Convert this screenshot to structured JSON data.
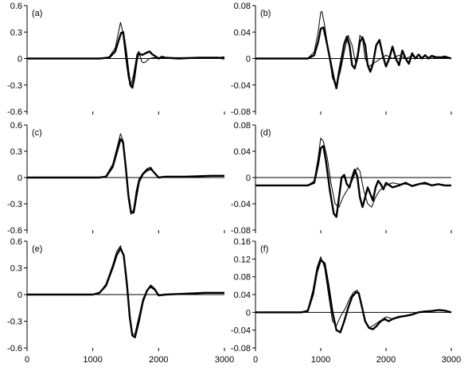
{
  "chart_data": [
    {
      "id": "a",
      "label": "(a)",
      "type": "line",
      "ylim": [
        -0.6,
        0.6
      ],
      "yticks": [
        -0.6,
        -0.3,
        0,
        0.3,
        0.6
      ],
      "yticklabels": [
        "-0.6",
        "-0.3",
        "0",
        "0.3",
        "0.6"
      ],
      "xlim": [
        0,
        3000
      ],
      "xticks": [
        0,
        1000,
        2000,
        3000
      ],
      "xticklabels": [],
      "series": [
        {
          "style": "thin",
          "x": [
            0,
            1100,
            1250,
            1340,
            1390,
            1420,
            1450,
            1500,
            1540,
            1580,
            1620,
            1670,
            1700,
            1740,
            1770,
            1800,
            1860,
            1920,
            2000,
            2100,
            2300,
            2600,
            2900,
            3000
          ],
          "y": [
            0,
            0,
            0.02,
            0.12,
            0.3,
            0.41,
            0.32,
            0.0,
            -0.22,
            -0.3,
            -0.18,
            0.05,
            0.08,
            -0.03,
            -0.05,
            -0.04,
            0.0,
            0.01,
            0.0,
            0.01,
            0.01,
            0.01,
            0.01,
            0.02
          ]
        },
        {
          "style": "thick",
          "x": [
            0,
            1100,
            1250,
            1340,
            1390,
            1430,
            1460,
            1500,
            1540,
            1570,
            1600,
            1630,
            1670,
            1700,
            1750,
            1800,
            1860,
            1900,
            1960,
            2000,
            2050,
            2100,
            2300,
            2600,
            2900,
            3000
          ],
          "y": [
            0,
            0,
            0.01,
            0.08,
            0.2,
            0.29,
            0.3,
            0.1,
            -0.15,
            -0.3,
            -0.33,
            -0.22,
            0.0,
            0.06,
            0.04,
            0.06,
            0.08,
            0.05,
            0.02,
            0.0,
            0.02,
            0.01,
            0.0,
            0.01,
            0.01,
            0.0
          ]
        }
      ]
    },
    {
      "id": "b",
      "label": "(b)",
      "type": "line",
      "ylim": [
        -0.08,
        0.08
      ],
      "yticks": [
        -0.08,
        -0.04,
        0,
        0.04,
        0.08
      ],
      "yticklabels": [
        "-0.08",
        "-0.04",
        "0",
        "0.04",
        "0.08"
      ],
      "xlim": [
        0,
        3000
      ],
      "xticks": [
        0,
        1000,
        2000,
        3000
      ],
      "xticklabels": [],
      "series": [
        {
          "style": "thin",
          "x": [
            0,
            800,
            900,
            960,
            1000,
            1020,
            1060,
            1120,
            1180,
            1240,
            1300,
            1360,
            1420,
            1480,
            1530,
            1560,
            1600,
            1640,
            1680,
            1740,
            1800,
            1860,
            1920,
            2000,
            2100,
            2200,
            2300,
            2400,
            2500,
            2600,
            2700,
            2800,
            2900,
            3000
          ],
          "y": [
            0,
            0,
            0.01,
            0.04,
            0.07,
            0.071,
            0.05,
            0.01,
            -0.03,
            -0.04,
            -0.02,
            0.01,
            0.035,
            0.02,
            -0.005,
            0.005,
            0.035,
            0.03,
            0.0,
            -0.012,
            -0.008,
            -0.004,
            0.0,
            0.005,
            0.0,
            0.005,
            0.0,
            0.004,
            0.0,
            0.004,
            0.0,
            0.003,
            0.001,
            0.0
          ]
        },
        {
          "style": "thick",
          "x": [
            0,
            800,
            900,
            960,
            1000,
            1040,
            1080,
            1140,
            1200,
            1240,
            1280,
            1320,
            1360,
            1400,
            1440,
            1480,
            1520,
            1560,
            1600,
            1640,
            1680,
            1720,
            1760,
            1800,
            1850,
            1900,
            1950,
            2000,
            2050,
            2100,
            2150,
            2200,
            2250,
            2300,
            2350,
            2400,
            2450,
            2500,
            2550,
            2600,
            2650,
            2700,
            2800,
            2900,
            3000
          ],
          "y": [
            0,
            0,
            0.005,
            0.025,
            0.045,
            0.047,
            0.03,
            0.0,
            -0.03,
            -0.045,
            -0.02,
            0.0,
            0.022,
            0.033,
            0.02,
            -0.01,
            -0.015,
            0.0,
            0.025,
            0.032,
            0.02,
            -0.01,
            -0.02,
            -0.008,
            0.02,
            0.028,
            0.005,
            -0.012,
            0.0,
            0.018,
            0.0,
            -0.01,
            0.012,
            0.0,
            -0.008,
            0.008,
            0.0,
            0.006,
            0.0,
            0.005,
            0.0,
            0.004,
            0.001,
            0.003,
            0.0
          ]
        }
      ]
    },
    {
      "id": "c",
      "label": "(c)",
      "type": "line",
      "ylim": [
        -0.6,
        0.6
      ],
      "yticks": [
        -0.6,
        -0.3,
        0,
        0.3,
        0.6
      ],
      "yticklabels": [
        "-0.6",
        "-0.3",
        "0",
        "0.3",
        "0.6"
      ],
      "xlim": [
        0,
        3000
      ],
      "xticks": [
        0,
        1000,
        2000,
        3000
      ],
      "xticklabels": [],
      "series": [
        {
          "style": "thin",
          "x": [
            0,
            1100,
            1200,
            1300,
            1380,
            1420,
            1460,
            1500,
            1540,
            1580,
            1620,
            1660,
            1700,
            1760,
            1820,
            1880,
            1940,
            2000,
            2100,
            2400,
            2800,
            3000
          ],
          "y": [
            0,
            0,
            0.02,
            0.15,
            0.38,
            0.5,
            0.42,
            0.1,
            -0.25,
            -0.42,
            -0.36,
            -0.15,
            -0.02,
            0.05,
            0.1,
            0.12,
            0.05,
            0.0,
            0.01,
            0.01,
            0.02,
            0.02
          ]
        },
        {
          "style": "thick",
          "x": [
            0,
            1100,
            1200,
            1300,
            1380,
            1420,
            1460,
            1500,
            1540,
            1580,
            1620,
            1660,
            1700,
            1760,
            1820,
            1880,
            1940,
            2000,
            2100,
            2400,
            2800,
            3000
          ],
          "y": [
            0,
            0,
            0.01,
            0.12,
            0.33,
            0.44,
            0.4,
            0.12,
            -0.2,
            -0.4,
            -0.4,
            -0.22,
            -0.05,
            0.04,
            0.08,
            0.1,
            0.05,
            0.0,
            0.01,
            0.01,
            0.02,
            0.02
          ]
        }
      ]
    },
    {
      "id": "d",
      "label": "(d)",
      "type": "line",
      "ylim": [
        -0.08,
        0.08
      ],
      "yticks": [
        -0.08,
        -0.04,
        0,
        0.04,
        0.08
      ],
      "yticklabels": [
        "-0.08",
        "-0.04",
        "0",
        "0.04",
        "0.08"
      ],
      "xlim": [
        0,
        3000
      ],
      "xticks": [
        0,
        1000,
        2000,
        3000
      ],
      "xticklabels": [],
      "series": [
        {
          "style": "thin",
          "x": [
            0,
            800,
            900,
            960,
            1000,
            1040,
            1100,
            1160,
            1220,
            1280,
            1340,
            1400,
            1460,
            1520,
            1560,
            1600,
            1660,
            1720,
            1780,
            1840,
            1900,
            1960,
            2000,
            2100,
            2200,
            2300,
            2400,
            2500,
            2600,
            2700,
            2800,
            2900,
            3000
          ],
          "y": [
            -0.012,
            -0.012,
            -0.005,
            0.03,
            0.06,
            0.055,
            0.03,
            -0.01,
            -0.04,
            -0.045,
            -0.03,
            -0.02,
            -0.01,
            0.005,
            0.015,
            0.01,
            -0.02,
            -0.04,
            -0.045,
            -0.03,
            -0.02,
            -0.015,
            -0.012,
            -0.008,
            -0.01,
            -0.01,
            -0.012,
            -0.01,
            -0.01,
            -0.012,
            -0.01,
            -0.012,
            -0.012
          ]
        },
        {
          "style": "thick",
          "x": [
            0,
            800,
            900,
            960,
            1000,
            1040,
            1080,
            1140,
            1200,
            1240,
            1280,
            1320,
            1360,
            1400,
            1440,
            1480,
            1520,
            1560,
            1600,
            1640,
            1680,
            1720,
            1760,
            1800,
            1840,
            1880,
            1920,
            1960,
            2000,
            2100,
            2200,
            2300,
            2400,
            2500,
            2600,
            2700,
            2800,
            2900,
            3000
          ],
          "y": [
            -0.012,
            -0.012,
            -0.008,
            0.02,
            0.045,
            0.048,
            0.025,
            -0.02,
            -0.055,
            -0.06,
            -0.03,
            0.0,
            0.004,
            -0.01,
            -0.015,
            0.0,
            0.012,
            0.002,
            -0.03,
            -0.045,
            -0.03,
            -0.015,
            -0.025,
            -0.035,
            -0.015,
            -0.005,
            -0.01,
            -0.018,
            -0.008,
            -0.015,
            -0.012,
            -0.008,
            -0.013,
            -0.01,
            -0.008,
            -0.012,
            -0.01,
            -0.012,
            -0.012
          ]
        }
      ]
    },
    {
      "id": "e",
      "label": "(e)",
      "type": "line",
      "ylim": [
        -0.6,
        0.6
      ],
      "yticks": [
        -0.6,
        -0.3,
        0,
        0.3,
        0.6
      ],
      "yticklabels": [
        "-0.6",
        "-0.3",
        "0",
        "0.3",
        "0.6"
      ],
      "xlim": [
        0,
        3000
      ],
      "xticks": [
        0,
        1000,
        2000,
        3000
      ],
      "xticklabels": [
        "0",
        "1000",
        "2000",
        "3000"
      ],
      "series": [
        {
          "style": "thin",
          "x": [
            0,
            1000,
            1100,
            1200,
            1300,
            1360,
            1420,
            1470,
            1520,
            1560,
            1600,
            1640,
            1700,
            1760,
            1820,
            1880,
            1940,
            2000,
            2100,
            2400,
            2700,
            3000
          ],
          "y": [
            0,
            0,
            0.02,
            0.12,
            0.33,
            0.48,
            0.55,
            0.42,
            0.05,
            -0.28,
            -0.45,
            -0.44,
            -0.25,
            -0.05,
            0.05,
            0.08,
            0.05,
            -0.01,
            0.0,
            0.01,
            0.02,
            0.02
          ]
        },
        {
          "style": "thick",
          "x": [
            0,
            1000,
            1100,
            1200,
            1300,
            1360,
            1420,
            1470,
            1520,
            1560,
            1600,
            1640,
            1700,
            1760,
            1820,
            1880,
            1940,
            2000,
            2100,
            2400,
            2700,
            3000
          ],
          "y": [
            0,
            0,
            0.02,
            0.1,
            0.3,
            0.44,
            0.52,
            0.44,
            0.1,
            -0.25,
            -0.46,
            -0.48,
            -0.3,
            -0.08,
            0.04,
            0.1,
            0.06,
            -0.01,
            0.0,
            0.01,
            0.02,
            0.02
          ]
        }
      ]
    },
    {
      "id": "f",
      "label": "(f)",
      "type": "line",
      "ylim": [
        -0.08,
        0.16
      ],
      "yticks": [
        -0.08,
        -0.04,
        0,
        0.04,
        0.08,
        0.12,
        0.16
      ],
      "yticklabels": [
        "-0.08",
        "-0.04",
        "0",
        "0.04",
        "0.08",
        "0.12",
        "0.16"
      ],
      "xlim": [
        0,
        3000
      ],
      "xticks": [
        0,
        1000,
        2000,
        3000
      ],
      "xticklabels": [
        "0",
        "1000",
        "2000",
        "3000"
      ],
      "series": [
        {
          "style": "thin",
          "x": [
            0,
            700,
            800,
            880,
            940,
            1000,
            1060,
            1120,
            1180,
            1240,
            1300,
            1380,
            1440,
            1500,
            1560,
            1620,
            1680,
            1740,
            1800,
            1900,
            2000,
            2100,
            2200,
            2300,
            2400,
            2500,
            2600,
            2700,
            2800,
            2900,
            3000
          ],
          "y": [
            0,
            0,
            0.005,
            0.05,
            0.1,
            0.125,
            0.1,
            0.04,
            -0.02,
            -0.03,
            -0.01,
            0.01,
            0.03,
            0.045,
            0.05,
            0.02,
            -0.02,
            -0.035,
            -0.03,
            -0.02,
            -0.01,
            -0.015,
            -0.012,
            -0.008,
            -0.005,
            0.0,
            0.002,
            0.004,
            0.005,
            0.004,
            0.0
          ]
        },
        {
          "style": "thick",
          "x": [
            0,
            700,
            800,
            880,
            940,
            1000,
            1060,
            1120,
            1180,
            1240,
            1300,
            1360,
            1420,
            1480,
            1540,
            1580,
            1620,
            1680,
            1740,
            1800,
            1860,
            1920,
            1980,
            2040,
            2100,
            2200,
            2300,
            2400,
            2500,
            2600,
            2700,
            2800,
            2900,
            3000
          ],
          "y": [
            0,
            0,
            0.003,
            0.04,
            0.09,
            0.118,
            0.11,
            0.06,
            0.0,
            -0.04,
            -0.045,
            -0.02,
            0.01,
            0.035,
            0.045,
            0.044,
            0.02,
            -0.02,
            -0.035,
            -0.038,
            -0.03,
            -0.02,
            -0.015,
            -0.02,
            -0.015,
            -0.01,
            -0.008,
            -0.005,
            0.0,
            0.002,
            0.003,
            0.005,
            0.004,
            0.0
          ]
        }
      ]
    }
  ]
}
